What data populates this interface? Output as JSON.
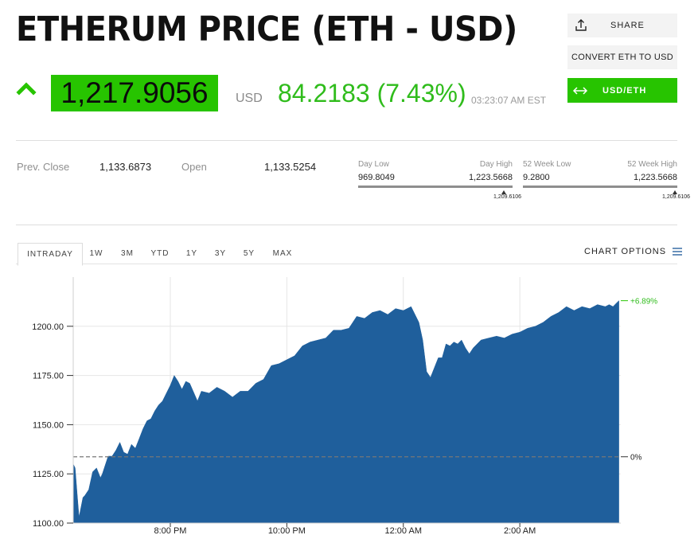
{
  "header": {
    "title": "ETHERUM PRICE (ETH - USD)",
    "price": "1,217.9056",
    "price_unit": "USD",
    "change": "84.2183 (7.43%)",
    "timestamp": "03:23:07 AM EST",
    "direction": "up",
    "up_color": "#27c400"
  },
  "actions": {
    "share": "SHARE",
    "convert": "CONVERT ETH TO USD",
    "usd_eth": "USD/ETH"
  },
  "stats": {
    "prev_close_label": "Prev. Close",
    "prev_close": "1,133.6873",
    "open_label": "Open",
    "open": "1,133.5254",
    "day_low_label": "Day Low",
    "day_low": "969.8049",
    "day_high_label": "Day High",
    "day_high": "1,223.5668",
    "day_marker": "1,209.6106",
    "week52_low_label": "52 Week Low",
    "week52_low": "9.2800",
    "week52_high_label": "52 Week High",
    "week52_high": "1,223.5668",
    "week52_marker": "1,209.6106"
  },
  "tabs": [
    "INTRADAY",
    "1W",
    "3M",
    "YTD",
    "1Y",
    "3Y",
    "5Y",
    "MAX"
  ],
  "active_tab": "INTRADAY",
  "chart_options_label": "CHART OPTIONS",
  "chart_data": {
    "type": "area",
    "ylim": [
      1100,
      1225
    ],
    "y_ticks": [
      1100,
      1125,
      1150,
      1175,
      1200
    ],
    "y_tick_labels": [
      "1100.00",
      "1125.00",
      "1150.00",
      "1175.00",
      "1200.00"
    ],
    "x_ticks": [
      2.5,
      5.5,
      8.5,
      11.5
    ],
    "x_tick_labels": [
      "8:00 PM",
      "10:00 PM",
      "12:00 AM",
      "2:00 AM"
    ],
    "xlim": [
      0,
      14.1
    ],
    "baseline": 1133.6873,
    "baseline_label": "0%",
    "last_label": "+6.89%",
    "fill_color": "#1f5f9c",
    "series": [
      {
        "x": [
          0,
          0.05,
          0.1,
          0.15,
          0.25,
          0.3,
          0.4,
          0.5,
          0.6,
          0.7,
          0.75,
          0.8,
          0.9,
          1.0,
          1.1,
          1.2,
          1.3,
          1.4,
          1.5,
          1.6,
          1.7,
          1.8,
          1.9,
          2.0,
          2.1,
          2.2,
          2.3,
          2.4,
          2.5,
          2.6,
          2.7,
          2.8,
          2.9,
          3.0,
          3.2,
          3.3,
          3.5,
          3.7,
          3.9,
          4.1,
          4.3,
          4.5,
          4.7,
          4.9,
          5.1,
          5.3,
          5.5,
          5.7,
          5.9,
          6.1,
          6.3,
          6.5,
          6.7,
          6.9,
          7.1,
          7.3,
          7.5,
          7.7,
          7.9,
          8.1,
          8.3,
          8.5,
          8.7,
          8.9,
          9.0,
          9.1,
          9.2,
          9.3,
          9.4,
          9.5,
          9.6,
          9.7,
          9.8,
          9.9,
          10.0,
          10.1,
          10.2,
          10.3,
          10.5,
          10.7,
          10.9,
          11.1,
          11.3,
          11.5,
          11.7,
          11.9,
          12.1,
          12.3,
          12.5,
          12.7,
          12.9,
          13.1,
          13.3,
          13.5,
          13.7,
          13.8,
          13.9,
          14.0,
          14.05
        ],
        "y": [
          1130,
          1128,
          1115,
          1103,
          1113,
          1114,
          1117,
          1126,
          1128,
          1123,
          1125,
          1128,
          1134,
          1134,
          1137,
          1141,
          1136,
          1135,
          1140,
          1138,
          1143,
          1148,
          1152,
          1153,
          1157,
          1160,
          1162,
          1166,
          1170,
          1175,
          1172,
          1168,
          1172,
          1171,
          1162,
          1167,
          1166,
          1169,
          1167,
          1164,
          1167,
          1167,
          1171,
          1173,
          1180,
          1181,
          1183,
          1185,
          1190,
          1192,
          1193,
          1194,
          1198,
          1198,
          1199,
          1205,
          1204,
          1207,
          1208,
          1206,
          1209,
          1208,
          1210,
          1202,
          1193,
          1177,
          1174,
          1179,
          1184,
          1184,
          1191,
          1190,
          1192,
          1191,
          1193,
          1189,
          1186,
          1189,
          1193,
          1194,
          1195,
          1194,
          1196,
          1197,
          1199,
          1200,
          1202,
          1205,
          1207,
          1210,
          1208,
          1210,
          1209,
          1211,
          1210,
          1211,
          1210,
          1212,
          1213
        ]
      }
    ]
  }
}
